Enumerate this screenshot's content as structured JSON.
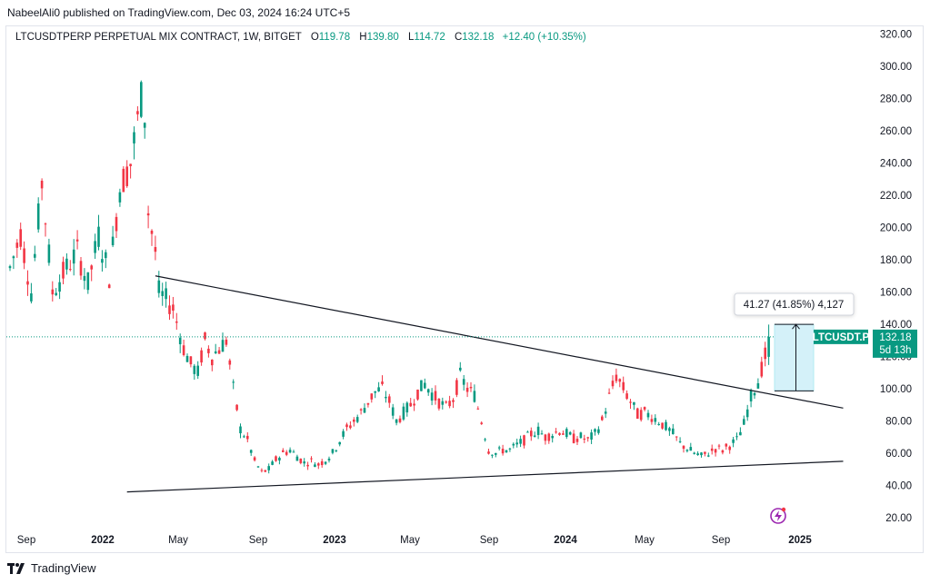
{
  "publisher": "NabeelAli0 published on TradingView.com, Dec 03, 2024 16:24 UTC+5",
  "header": {
    "symbol": "LTCUSDTPERP PERPETUAL MIX CONTRACT, 1W, BITGET",
    "o_label": "O",
    "o_value": "119.78",
    "h_label": "H",
    "h_value": "139.80",
    "l_label": "L",
    "l_value": "114.72",
    "c_label": "C",
    "c_value": "132.18",
    "change": "+12.40 (+10.35%)"
  },
  "price_tag": {
    "symbol": "LTCUSDT.P",
    "price": "132.18",
    "countdown": "5d 13h"
  },
  "measure_label": "41.27 (41.85%) 4,127",
  "footer_brand": "TradingView",
  "colors": {
    "up": "#089981",
    "down": "#f23645",
    "trendline": "#131722",
    "measure_fill": "#d4f1f9",
    "grid_text": "#131722",
    "alert": "#9c27b0"
  },
  "chart_data": {
    "type": "candlestick",
    "interval": "1W",
    "x": {
      "labels": [
        "Sep",
        "2022",
        "May",
        "Sep",
        "2023",
        "May",
        "Sep",
        "2024",
        "May",
        "Sep",
        "2025"
      ]
    },
    "y": {
      "ticks": [
        "320.00",
        "300.00",
        "280.00",
        "260.00",
        "240.00",
        "220.00",
        "200.00",
        "180.00",
        "160.00",
        "140.00",
        "120.00",
        "100.00",
        "80.00",
        "60.00",
        "40.00",
        "20.00"
      ],
      "range": [
        10,
        330
      ],
      "scale": "linear"
    },
    "last_price": 132.18,
    "ohlc_summary": {
      "open": 119.78,
      "high": 139.8,
      "low": 114.72,
      "close": 132.18
    },
    "price_path": [
      [
        0,
        175
      ],
      [
        3,
        196
      ],
      [
        6,
        160
      ],
      [
        9,
        228
      ],
      [
        12,
        160
      ],
      [
        16,
        175
      ],
      [
        19,
        185
      ],
      [
        22,
        165
      ],
      [
        25,
        195
      ],
      [
        28,
        170
      ],
      [
        31,
        225
      ],
      [
        34,
        240
      ],
      [
        37,
        280
      ],
      [
        38,
        270
      ],
      [
        39,
        210
      ],
      [
        41,
        185
      ],
      [
        42,
        160
      ],
      [
        44,
        155
      ],
      [
        46,
        150
      ],
      [
        49,
        125
      ],
      [
        51,
        115
      ],
      [
        53,
        110
      ],
      [
        55,
        130
      ],
      [
        57,
        120
      ],
      [
        59,
        125
      ],
      [
        61,
        130
      ],
      [
        63,
        100
      ],
      [
        65,
        75
      ],
      [
        67,
        68
      ],
      [
        69,
        55
      ],
      [
        71,
        48
      ],
      [
        73,
        50
      ],
      [
        75,
        56
      ],
      [
        77,
        60
      ],
      [
        79,
        62
      ],
      [
        81,
        58
      ],
      [
        83,
        54
      ],
      [
        85,
        55
      ],
      [
        87,
        53
      ],
      [
        89,
        56
      ],
      [
        91,
        60
      ],
      [
        93,
        68
      ],
      [
        95,
        75
      ],
      [
        97,
        80
      ],
      [
        99,
        85
      ],
      [
        101,
        92
      ],
      [
        103,
        98
      ],
      [
        105,
        100
      ],
      [
        107,
        92
      ],
      [
        109,
        80
      ],
      [
        111,
        85
      ],
      [
        113,
        90
      ],
      [
        115,
        98
      ],
      [
        117,
        103
      ],
      [
        119,
        97
      ],
      [
        121,
        92
      ],
      [
        123,
        88
      ],
      [
        125,
        94
      ],
      [
        127,
        108
      ],
      [
        129,
        100
      ],
      [
        131,
        96
      ],
      [
        133,
        80
      ],
      [
        135,
        62
      ],
      [
        137,
        60
      ],
      [
        139,
        62
      ],
      [
        141,
        62
      ],
      [
        143,
        65
      ],
      [
        145,
        68
      ],
      [
        147,
        72
      ],
      [
        149,
        74
      ],
      [
        151,
        70
      ],
      [
        153,
        72
      ],
      [
        155,
        74
      ],
      [
        157,
        72
      ],
      [
        159,
        69
      ],
      [
        161,
        70
      ],
      [
        163,
        68
      ],
      [
        165,
        72
      ],
      [
        167,
        80
      ],
      [
        169,
        95
      ],
      [
        171,
        108
      ],
      [
        173,
        100
      ],
      [
        175,
        92
      ],
      [
        177,
        84
      ],
      [
        179,
        85
      ],
      [
        181,
        83
      ],
      [
        183,
        80
      ],
      [
        185,
        76
      ],
      [
        187,
        72
      ],
      [
        189,
        66
      ],
      [
        191,
        63
      ],
      [
        193,
        60
      ],
      [
        195,
        58
      ],
      [
        197,
        60
      ],
      [
        199,
        63
      ],
      [
        201,
        62
      ],
      [
        203,
        65
      ],
      [
        205,
        68
      ],
      [
        207,
        78
      ],
      [
        209,
        95
      ],
      [
        211,
        105
      ],
      [
        213,
        120
      ],
      [
        214,
        132.18
      ]
    ],
    "trendlines": [
      {
        "from": [
          41,
          170
        ],
        "to": [
          235,
          88
        ]
      },
      {
        "from": [
          33,
          36
        ],
        "to": [
          235,
          55
        ]
      }
    ],
    "measure": {
      "from_price": 98.65,
      "to_price": 139.92,
      "change": 41.27,
      "percent": 41.85,
      "ticks": 4127
    }
  }
}
